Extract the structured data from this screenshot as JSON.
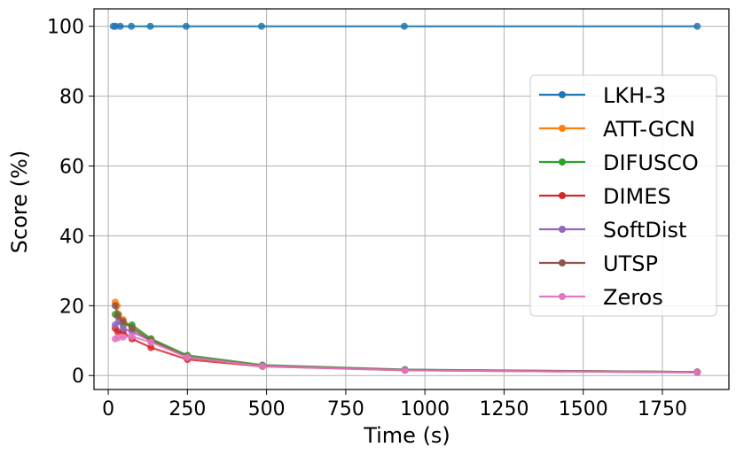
{
  "chart_data": {
    "type": "line",
    "title": "",
    "xlabel": "Time (s)",
    "ylabel": "Score (%)",
    "xlim": [
      -45,
      1960
    ],
    "ylim": [
      -4,
      105
    ],
    "xticks": [
      0,
      250,
      500,
      750,
      1000,
      1250,
      1500,
      1750
    ],
    "xtick_labels": [
      "0",
      "250",
      "500",
      "750",
      "1000",
      "1250",
      "1500",
      "1750"
    ],
    "yticks": [
      0,
      20,
      40,
      60,
      80,
      100
    ],
    "ytick_labels": [
      "0",
      "20",
      "40",
      "60",
      "80",
      "100"
    ],
    "grid": true,
    "legend_position": "center-right",
    "series": [
      {
        "name": "LKH-3",
        "color": "#1f77b4",
        "x": [
          16,
          23,
          38,
          73,
          133,
          246,
          484,
          935,
          1860
        ],
        "y": [
          100,
          100,
          100,
          100,
          100,
          100,
          100,
          100,
          100
        ]
      },
      {
        "name": "ATT-GCN",
        "color": "#ff7f0e",
        "x": [
          22,
          28,
          33,
          47,
          75,
          135,
          250,
          487,
          937,
          1860
        ],
        "y": [
          21,
          20,
          17.5,
          16,
          14,
          10.5,
          5.5,
          2.8,
          1.6,
          1.0
        ]
      },
      {
        "name": "DIFUSCO",
        "color": "#2ca02c",
        "x": [
          22,
          30,
          47,
          75,
          135,
          250,
          487,
          937,
          1860
        ],
        "y": [
          17.5,
          17.5,
          14.5,
          14.5,
          10.5,
          5.8,
          3.0,
          1.7,
          1.0
        ]
      },
      {
        "name": "DIMES",
        "color": "#d62728",
        "x": [
          22,
          30,
          47,
          75,
          135,
          250,
          487,
          937,
          1860
        ],
        "y": [
          13.5,
          12.5,
          12.5,
          10.5,
          8.0,
          4.6,
          2.6,
          1.5,
          0.9
        ]
      },
      {
        "name": "SoftDist",
        "color": "#9467bd",
        "x": [
          22,
          33,
          47,
          75,
          135,
          250,
          487,
          937,
          1860
        ],
        "y": [
          14.5,
          15.5,
          13.5,
          12.5,
          10,
          5.3,
          2.8,
          1.6,
          1.0
        ]
      },
      {
        "name": "UTSP",
        "color": "#8c564b",
        "x": [
          22,
          30,
          47,
          75,
          135,
          250,
          487,
          937,
          1860
        ],
        "y": [
          20,
          17,
          15.5,
          13.5,
          10,
          5.3,
          2.8,
          1.6,
          1.0
        ]
      },
      {
        "name": "Zeros",
        "color": "#e377c2",
        "x": [
          22,
          30,
          47,
          75,
          135,
          250,
          487,
          937,
          1860
        ],
        "y": [
          10.5,
          10.8,
          11,
          11.2,
          9.5,
          5.2,
          2.7,
          1.5,
          0.9
        ]
      }
    ]
  }
}
